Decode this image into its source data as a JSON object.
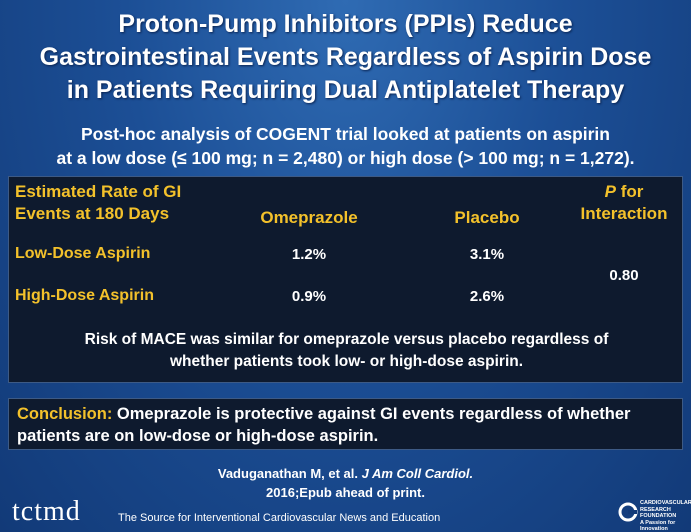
{
  "title": {
    "line1": "Proton-Pump Inhibitors (PPIs) Reduce",
    "line2": "Gastrointestinal Events Regardless of Aspirin Dose",
    "line3": "in Patients Requiring Dual Antiplatelet Therapy"
  },
  "subtitle": {
    "line1": "Post-hoc analysis of COGENT trial looked at patients on aspirin",
    "line2": "at a low dose (≤ 100 mg; n = 2,480) or high dose (> 100 mg; n = 1,272)."
  },
  "table": {
    "header_label_line1": "Estimated Rate of GI",
    "header_label_line2": "Events at 180 Days",
    "col_omeprazole": "Omeprazole",
    "col_placebo": "Placebo",
    "col_p_italic": "P",
    "col_p_rest": " for",
    "col_p_line2": "Interaction",
    "rows": [
      {
        "label": "Low-Dose Aspirin",
        "omeprazole": "1.2%",
        "placebo": "3.1%"
      },
      {
        "label": "High-Dose Aspirin",
        "omeprazole": "0.9%",
        "placebo": "2.6%"
      }
    ],
    "p_value": "0.80",
    "note_line1": "Risk of MACE was similar for omeprazole versus placebo regardless of",
    "note_line2": "whether patients took low- or high-dose aspirin."
  },
  "conclusion": {
    "label": "Conclusion:",
    "text": "  Omeprazole is protective against GI events regardless of whether patients are on low-dose or high-dose aspirin."
  },
  "citation": {
    "authors": "Vaduganathan M, et al. ",
    "journal": "J Am Coll Cardiol.",
    "line2": "2016;Epub ahead of print."
  },
  "footer": {
    "logo": "tctmd",
    "tagline": "The Source for Interventional Cardiovascular News and Education",
    "crf_line1": "CARDIOVASCULAR",
    "crf_line2": "RESEARCH",
    "crf_line3": "FOUNDATION",
    "crf_line4": "A Passion for Innovation"
  },
  "colors": {
    "accent": "#f3c12b",
    "panel": "#0e1a2e",
    "background": "#1c4f96"
  }
}
